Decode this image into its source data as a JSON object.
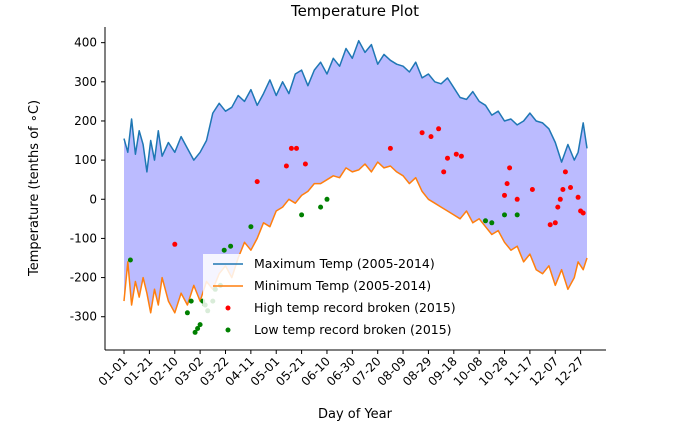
{
  "chart_data": {
    "type": "line",
    "title": "Temperature Plot",
    "xlabel": "Day of Year",
    "ylabel": "Temperature (tenths of ∘C)",
    "xlim": [
      -15,
      380
    ],
    "ylim": [
      -385,
      440
    ],
    "yticks": [
      400,
      300,
      200,
      100,
      0,
      -100,
      -200,
      -300
    ],
    "xticks": [
      {
        "day": 0,
        "label": "01-01"
      },
      {
        "day": 20,
        "label": "01-21"
      },
      {
        "day": 40,
        "label": "02-10"
      },
      {
        "day": 60,
        "label": "03-02"
      },
      {
        "day": 80,
        "label": "03-22"
      },
      {
        "day": 100,
        "label": "04-11"
      },
      {
        "day": 120,
        "label": "05-01"
      },
      {
        "day": 140,
        "label": "05-21"
      },
      {
        "day": 160,
        "label": "06-10"
      },
      {
        "day": 180,
        "label": "06-30"
      },
      {
        "day": 200,
        "label": "07-20"
      },
      {
        "day": 220,
        "label": "08-09"
      },
      {
        "day": 240,
        "label": "08-29"
      },
      {
        "day": 260,
        "label": "09-18"
      },
      {
        "day": 280,
        "label": "10-08"
      },
      {
        "day": 300,
        "label": "10-28"
      },
      {
        "day": 320,
        "label": "11-17"
      },
      {
        "day": 340,
        "label": "12-07"
      },
      {
        "day": 360,
        "label": "12-27"
      }
    ],
    "fill_between": {
      "color": "#bbbbff"
    },
    "series": [
      {
        "name": "Maximum Temp (2005-2014)",
        "color": "#1f77b4",
        "x": [
          0,
          3,
          6,
          9,
          12,
          15,
          18,
          21,
          24,
          27,
          30,
          35,
          40,
          45,
          50,
          55,
          60,
          65,
          70,
          75,
          80,
          85,
          90,
          95,
          100,
          105,
          110,
          115,
          120,
          125,
          130,
          135,
          140,
          145,
          150,
          155,
          160,
          165,
          170,
          175,
          180,
          185,
          190,
          195,
          200,
          205,
          210,
          215,
          220,
          225,
          230,
          235,
          240,
          245,
          250,
          255,
          260,
          265,
          270,
          275,
          280,
          285,
          290,
          295,
          300,
          305,
          310,
          315,
          320,
          325,
          330,
          335,
          340,
          345,
          350,
          355,
          358,
          362,
          365
        ],
        "y": [
          155,
          120,
          205,
          115,
          175,
          140,
          70,
          150,
          100,
          175,
          110,
          145,
          120,
          160,
          130,
          100,
          120,
          150,
          220,
          245,
          225,
          235,
          265,
          250,
          280,
          240,
          270,
          305,
          265,
          300,
          270,
          320,
          330,
          290,
          330,
          350,
          320,
          360,
          340,
          385,
          360,
          405,
          375,
          395,
          345,
          370,
          355,
          345,
          340,
          325,
          350,
          310,
          320,
          300,
          295,
          310,
          285,
          260,
          255,
          275,
          250,
          240,
          215,
          225,
          200,
          205,
          190,
          200,
          220,
          200,
          195,
          180,
          145,
          95,
          140,
          100,
          120,
          195,
          130
        ]
      },
      {
        "name": "Minimum Temp (2005-2014)",
        "color": "#ff7f0e",
        "x": [
          0,
          3,
          6,
          9,
          12,
          15,
          18,
          21,
          24,
          27,
          30,
          35,
          40,
          45,
          50,
          55,
          60,
          65,
          70,
          75,
          80,
          85,
          90,
          95,
          100,
          105,
          110,
          115,
          120,
          125,
          130,
          135,
          140,
          145,
          150,
          155,
          160,
          165,
          170,
          175,
          180,
          185,
          190,
          195,
          200,
          205,
          210,
          215,
          220,
          225,
          230,
          235,
          240,
          245,
          250,
          255,
          260,
          265,
          270,
          275,
          280,
          285,
          290,
          295,
          300,
          305,
          310,
          315,
          320,
          325,
          330,
          335,
          340,
          345,
          350,
          355,
          358,
          362,
          365
        ],
        "y": [
          -260,
          -160,
          -270,
          -210,
          -250,
          -200,
          -240,
          -290,
          -230,
          -270,
          -200,
          -260,
          -290,
          -240,
          -270,
          -220,
          -260,
          -210,
          -230,
          -190,
          -170,
          -200,
          -150,
          -110,
          -130,
          -100,
          -60,
          -70,
          -30,
          -20,
          0,
          -10,
          10,
          20,
          40,
          40,
          50,
          60,
          55,
          80,
          70,
          75,
          90,
          70,
          95,
          80,
          85,
          70,
          60,
          40,
          55,
          20,
          0,
          -10,
          -20,
          -30,
          -40,
          -50,
          -30,
          -60,
          -50,
          -70,
          -90,
          -80,
          -110,
          -130,
          -120,
          -160,
          -140,
          -180,
          -190,
          -170,
          -220,
          -180,
          -230,
          -200,
          -160,
          -180,
          -150
        ]
      }
    ],
    "scatter": [
      {
        "name": "High temp record broken (2015)",
        "color": "#ff0000",
        "points": [
          [
            40,
            -115
          ],
          [
            105,
            45
          ],
          [
            128,
            85
          ],
          [
            132,
            130
          ],
          [
            136,
            130
          ],
          [
            143,
            90
          ],
          [
            210,
            130
          ],
          [
            235,
            170
          ],
          [
            242,
            160
          ],
          [
            248,
            180
          ],
          [
            252,
            70
          ],
          [
            255,
            105
          ],
          [
            262,
            115
          ],
          [
            266,
            110
          ],
          [
            300,
            10
          ],
          [
            302,
            40
          ],
          [
            304,
            80
          ],
          [
            310,
            0
          ],
          [
            322,
            25
          ],
          [
            336,
            -65
          ],
          [
            340,
            -60
          ],
          [
            342,
            -20
          ],
          [
            344,
            0
          ],
          [
            346,
            25
          ],
          [
            348,
            70
          ],
          [
            352,
            30
          ],
          [
            358,
            5
          ],
          [
            360,
            -30
          ],
          [
            362,
            -35
          ]
        ]
      },
      {
        "name": "Low temp record broken (2015)",
        "color": "#008000",
        "points": [
          [
            5,
            -155
          ],
          [
            50,
            -290
          ],
          [
            53,
            -260
          ],
          [
            56,
            -340
          ],
          [
            58,
            -330
          ],
          [
            60,
            -320
          ],
          [
            62,
            -260
          ],
          [
            64,
            -270
          ],
          [
            66,
            -285
          ],
          [
            70,
            -260
          ],
          [
            72,
            -230
          ],
          [
            76,
            -220
          ],
          [
            79,
            -130
          ],
          [
            84,
            -120
          ],
          [
            100,
            -70
          ],
          [
            140,
            -40
          ],
          [
            155,
            -20
          ],
          [
            160,
            0
          ],
          [
            285,
            -55
          ],
          [
            290,
            -60
          ],
          [
            300,
            -40
          ],
          [
            310,
            -40
          ]
        ]
      }
    ],
    "legend": {
      "position": "lower center"
    }
  }
}
